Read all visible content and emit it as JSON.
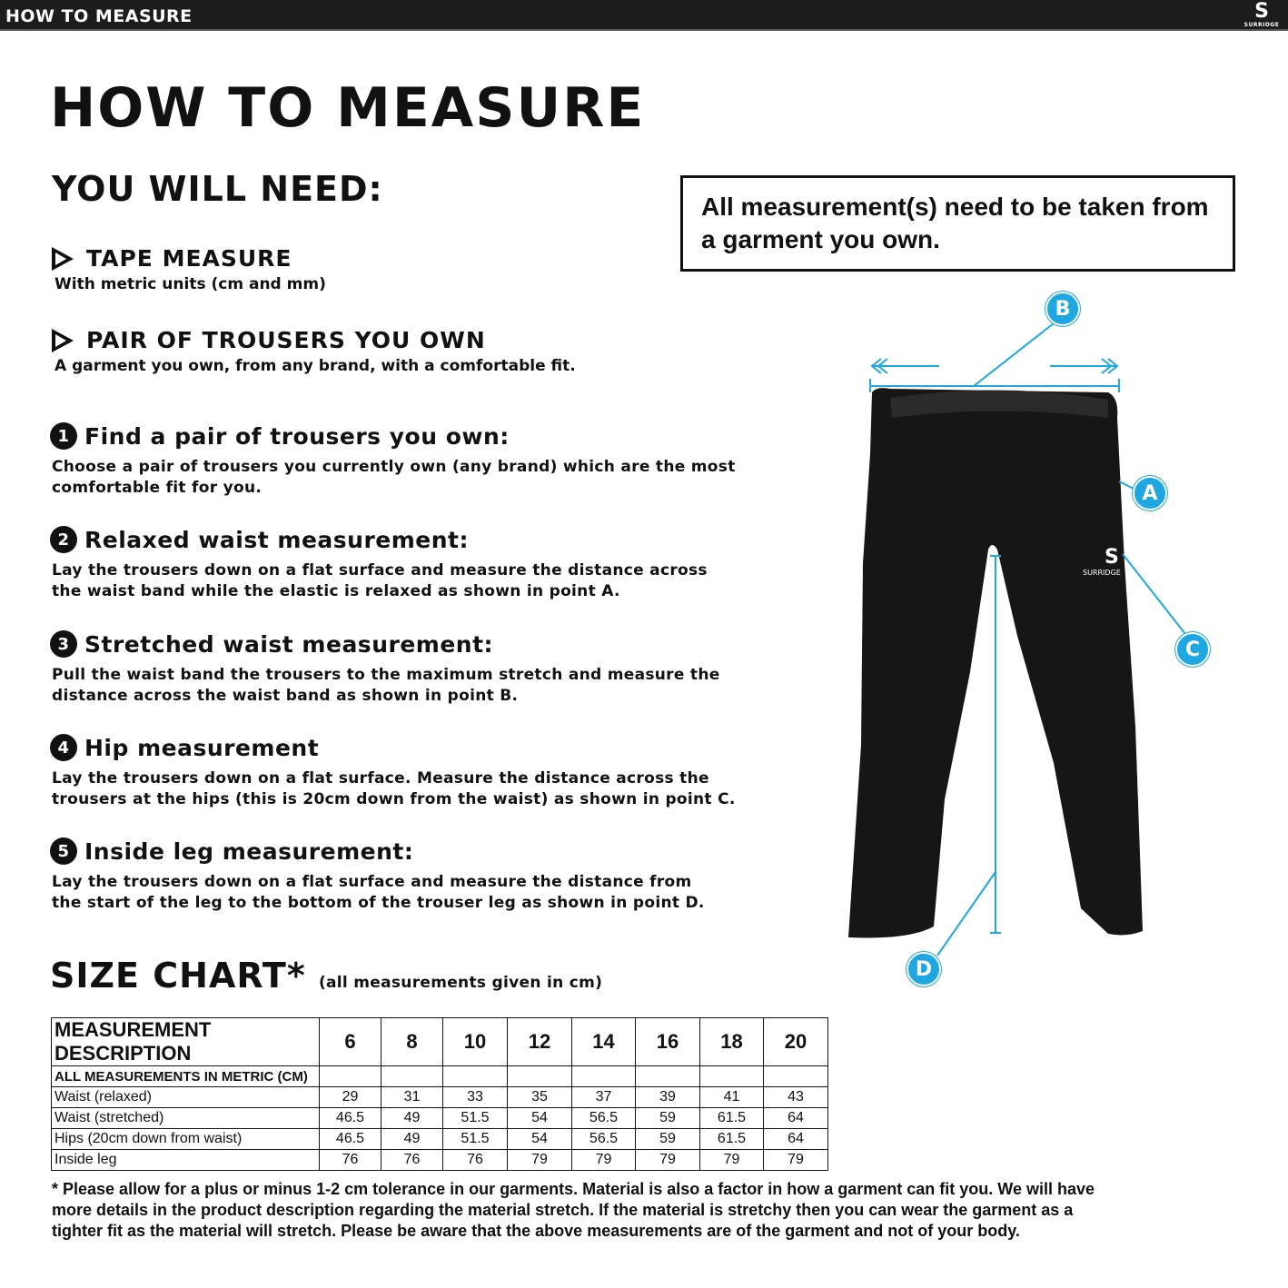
{
  "header": {
    "title": "HOW TO MEASURE",
    "logo_text": "SURRIDGE"
  },
  "title": "HOW TO MEASURE",
  "need_heading": "YOU WILL NEED:",
  "needs": [
    {
      "title": "TAPE MEASURE",
      "desc": "With metric units (cm and mm)"
    },
    {
      "title": "PAIR OF TROUSERS YOU OWN",
      "desc": "A garment you own, from any brand, with a comfortable fit."
    }
  ],
  "note": "All measurement(s) need to be taken from a garment you own.",
  "steps": [
    {
      "num": "1",
      "title": "Find a pair of trousers you own:",
      "lines": [
        "Choose a pair of trousers you currently own (any brand) which are the most",
        "comfortable fit for you."
      ]
    },
    {
      "num": "2",
      "title": "Relaxed waist measurement:",
      "lines": [
        "Lay the trousers down on a flat surface and measure the distance across",
        "the waist band while the elastic is relaxed as shown in point A."
      ]
    },
    {
      "num": "3",
      "title": "Stretched waist measurement:",
      "lines": [
        "Pull the waist band the trousers to the maximum stretch and measure the",
        "distance across the waist band as shown in point B."
      ]
    },
    {
      "num": "4",
      "title": "Hip measurement",
      "lines": [
        "Lay the trousers down on a flat surface. Measure the distance across the",
        "trousers at the hips (this is 20cm down from the waist) as shown in point C."
      ]
    },
    {
      "num": "5",
      "title": "Inside leg measurement:",
      "lines": [
        "Lay the trousers down on a flat surface and measure the distance from",
        "the start of the leg to the bottom of the trouser leg as shown in point D."
      ]
    }
  ],
  "diagram": {
    "points": [
      "A",
      "B",
      "C",
      "D"
    ],
    "logo_text": "SURRIDGE",
    "accent": "#1ea7e1"
  },
  "size_chart": {
    "title": "SIZE CHART*",
    "note": "(all measurements given in cm)",
    "header": "MEASUREMENT DESCRIPTION",
    "sizes": [
      "6",
      "8",
      "10",
      "12",
      "14",
      "16",
      "18",
      "20"
    ],
    "subheader": "ALL MEASUREMENTS IN METRIC (CM)",
    "rows": [
      {
        "label": "Waist (relaxed)",
        "values": [
          "29",
          "31",
          "33",
          "35",
          "37",
          "39",
          "41",
          "43"
        ]
      },
      {
        "label": "Waist (stretched)",
        "values": [
          "46.5",
          "49",
          "51.5",
          "54",
          "56.5",
          "59",
          "61.5",
          "64"
        ]
      },
      {
        "label": "Hips (20cm down from waist)",
        "values": [
          "46.5",
          "49",
          "51.5",
          "54",
          "56.5",
          "59",
          "61.5",
          "64"
        ]
      },
      {
        "label": "Inside leg",
        "values": [
          "76",
          "76",
          "76",
          "79",
          "79",
          "79",
          "79",
          "79"
        ]
      }
    ]
  },
  "footnote": [
    "* Please allow for a plus or minus 1-2 cm tolerance in our garments. Material is also a factor in how a garment can fit you. We will have",
    "more details in the product description regarding the material stretch.  If the material is stretchy then you can wear the garment as a",
    "tighter fit as the material will stretch.  Please be aware that the above measurements are of the garment and not of your body."
  ]
}
